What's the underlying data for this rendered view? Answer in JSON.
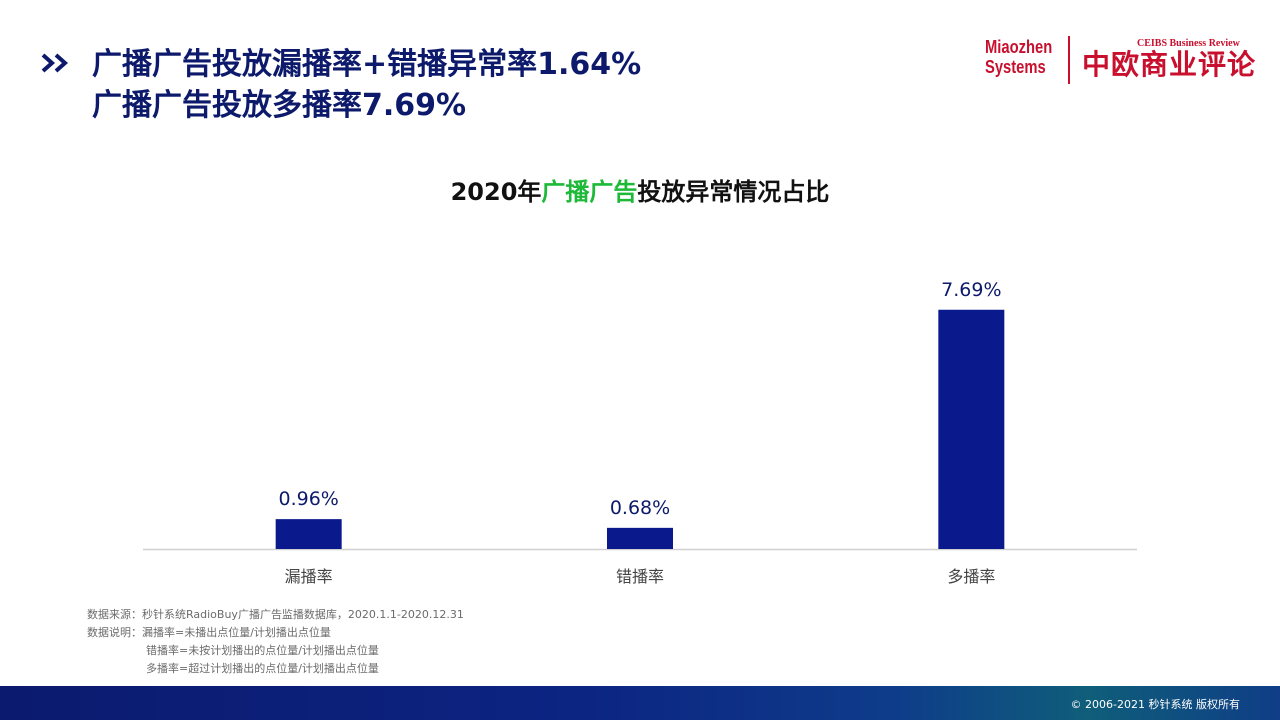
{
  "header": {
    "line1": "广播广告投放漏播率+错播异常率1.64%",
    "line2": "广播广告投放多播率7.69%"
  },
  "logos": {
    "miaozhen_line1": "Miaozhen",
    "miaozhen_line2": "Systems",
    "ceibs_en": "CEIBS Business Review",
    "ceibs_cn": "中欧商业评论"
  },
  "chart_title": {
    "prefix": "2020年",
    "highlight": "广播广告",
    "suffix": "投放异常情况占比"
  },
  "chart_data": {
    "type": "bar",
    "title": "2020年广播广告投放异常情况占比",
    "categories": [
      "漏播率",
      "错播率",
      "多播率"
    ],
    "values": [
      0.96,
      0.68,
      7.69
    ],
    "value_labels": [
      "0.96%",
      "0.68%",
      "7.69%"
    ],
    "unit": "%",
    "ylim": [
      0,
      9
    ],
    "grid": false,
    "bar_color": "#0a1a8c"
  },
  "notes": {
    "source": "数据来源：秒针系统RadioBuy广播广告监播数据库，2020.1.1-2020.12.31",
    "desc_label": "数据说明：",
    "def1": "漏播率=未播出点位量/计划播出点位量",
    "def2": "错播率=未按计划播出的点位量/计划播出点位量",
    "def3": "多播率=超过计划播出的点位量/计划播出点位量"
  },
  "footer": {
    "copyright": "© 2006-2021 秒针系统 版权所有"
  }
}
